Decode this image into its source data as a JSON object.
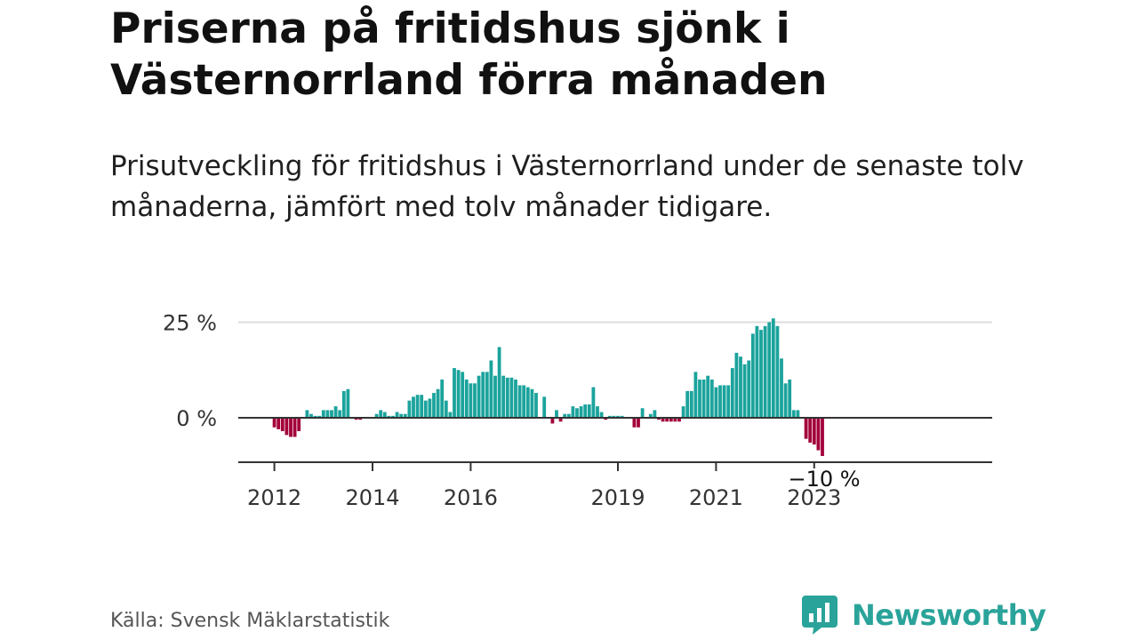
{
  "title": "Priserna på fritidshus sjönk i Västernorrland förra månaden",
  "subtitle": "Prisutveckling för fritidshus i Västernorrland under de senaste tolv månaderna, jämfört med tolv månader tidigare.",
  "source": "Källa: Svensk Mäklarstatistik",
  "brand": {
    "name": "Newsworthy",
    "icon": "bar-chart-speech-bubble-icon",
    "color": "#2aa39a"
  },
  "colors": {
    "positive": "#1ba39c",
    "negative": "#a3003a",
    "zero_line": "#333333",
    "grid": "#dddddd"
  },
  "chart_data": {
    "type": "bar",
    "start": "2011-12",
    "frequency": "monthly",
    "y_unit": "%",
    "ylim": [
      -12,
      25
    ],
    "y_ticks": [
      {
        "value": 25,
        "label": "25 %"
      },
      {
        "value": 0,
        "label": "0 %"
      }
    ],
    "x_ticks": [
      {
        "month": "2012-01",
        "label": "2012"
      },
      {
        "month": "2014-01",
        "label": "2014"
      },
      {
        "month": "2016-01",
        "label": "2016"
      },
      {
        "month": "2019-01",
        "label": "2019"
      },
      {
        "month": "2021-01",
        "label": "2021"
      },
      {
        "month": "2023-01",
        "label": "2023"
      }
    ],
    "last_value_label": "−10 %",
    "grid": "horizontal",
    "legend": "none",
    "values": [
      0,
      -2.5,
      -3,
      -3.5,
      -4.5,
      -5,
      -5,
      -3.5,
      0,
      2,
      1,
      0.5,
      0.5,
      2,
      2,
      2,
      3,
      2,
      7,
      7.5,
      0,
      -0.5,
      -0.5,
      0,
      0,
      0,
      1,
      2,
      1.5,
      0.5,
      0.5,
      1.5,
      1,
      1,
      4.5,
      5.5,
      6,
      6,
      4.5,
      5,
      6.5,
      7.5,
      10,
      4.5,
      1.5,
      13,
      12.5,
      12,
      10,
      9,
      9,
      11,
      12,
      12,
      15,
      11,
      18.5,
      11,
      10.5,
      10.5,
      10,
      8.5,
      8.5,
      8,
      7.5,
      6.5,
      0,
      5.5,
      0,
      -1.5,
      2,
      -1,
      1,
      1,
      3,
      2.5,
      3,
      3.5,
      3.5,
      8,
      3,
      1.5,
      -0.5,
      0.5,
      0.5,
      0.5,
      0.5,
      0,
      0,
      -2.5,
      -2.5,
      2.5,
      0,
      1,
      2,
      -0.5,
      -1,
      -1,
      -1,
      -1,
      -1,
      3,
      7,
      7,
      12,
      10,
      10,
      11,
      10,
      8,
      8.5,
      8.5,
      8.5,
      13,
      17,
      16,
      14,
      15,
      22,
      24,
      23,
      24,
      25,
      26,
      24,
      15.5,
      9,
      10,
      2,
      2,
      0,
      -5.5,
      -6.5,
      -7,
      -8.5,
      -10
    ]
  }
}
